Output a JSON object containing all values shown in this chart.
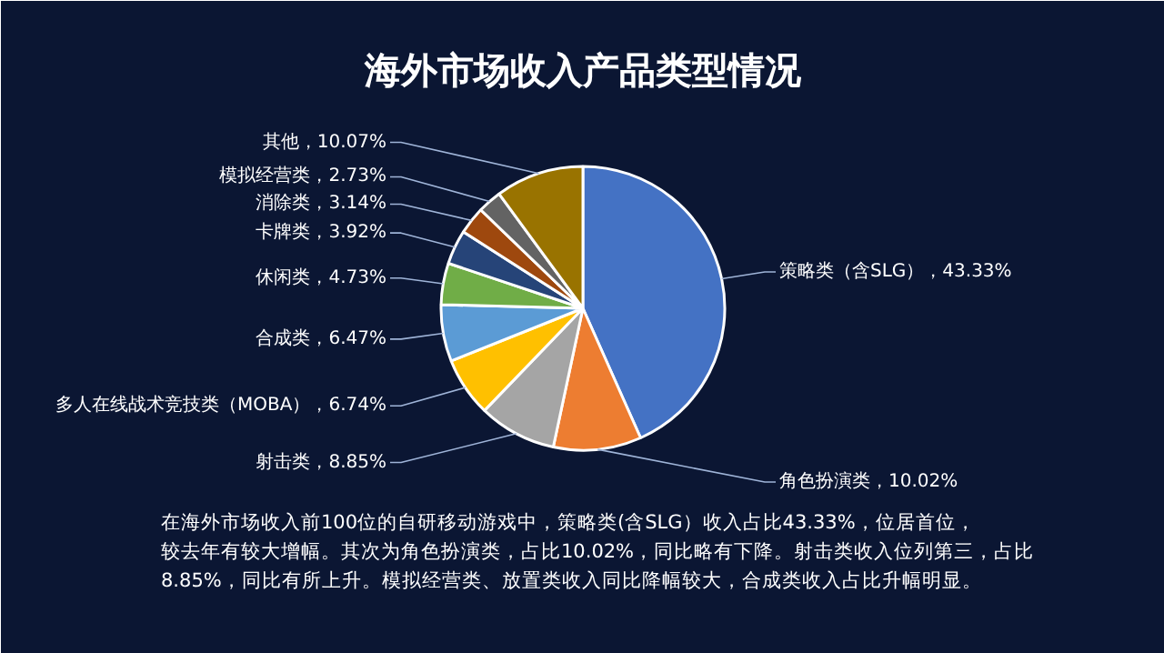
{
  "chart_data": {
    "type": "pie",
    "title": "海外市场收入产品类型情况",
    "categories": [
      "策略类（含SLG）",
      "角色扮演类",
      "射击类",
      "多人在线战术竞技类（MOBA）",
      "合成类",
      "休闲类",
      "卡牌类",
      "消除类",
      "模拟经营类",
      "其他"
    ],
    "values": [
      43.33,
      10.02,
      8.85,
      6.74,
      6.47,
      4.73,
      3.92,
      3.14,
      2.73,
      10.07
    ],
    "value_labels": [
      "43.33%",
      "10.02%",
      "8.85%",
      "6.74%",
      "6.47%",
      "4.73%",
      "3.92%",
      "3.14%",
      "2.73%",
      "10.07%"
    ],
    "colors": [
      "#4472c4",
      "#ed7d31",
      "#a5a5a5",
      "#ffc000",
      "#5b9bd5",
      "#70ad47",
      "#264478",
      "#9e480e",
      "#636363",
      "#997300"
    ],
    "annotations": [
      "在海外市场收入前100位的自研移动游戏中，策略类(含SLG）收入占比43.33%，位居首位，较去年有较大增幅。其次为角色扮演类，占比10.02%，同比略有下降。射击类收入位列第三，占比8.85%，同比有所上升。模拟经营类、放置类收入同比降幅较大，合成类收入占比升幅明显。"
    ]
  }
}
